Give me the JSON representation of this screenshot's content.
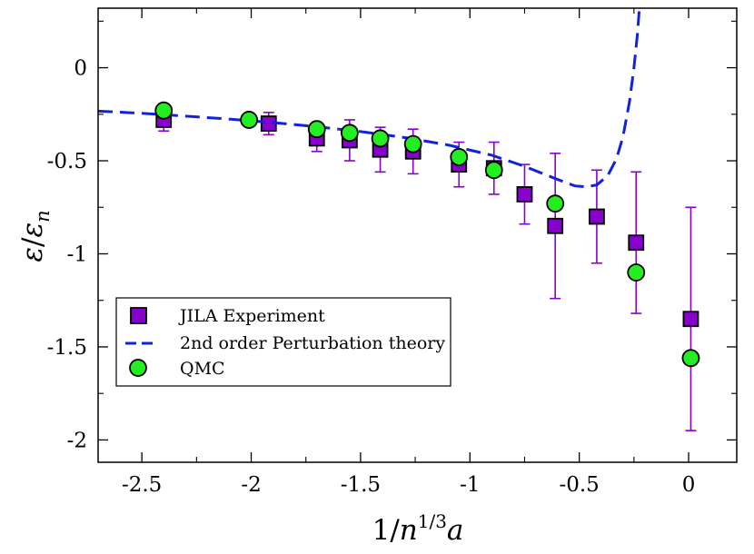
{
  "chart_data": {
    "type": "scatter",
    "title": "",
    "xlabel": "1/n^{1/3}a",
    "ylabel": "ε/ε_n",
    "xlim": [
      -2.7,
      0.22
    ],
    "ylim": [
      -2.12,
      0.32
    ],
    "x_ticks": [
      {
        "value": -2.5,
        "label": "-2.5"
      },
      {
        "value": -2,
        "label": "-2"
      },
      {
        "value": -1.5,
        "label": "-1.5"
      },
      {
        "value": -1,
        "label": "-1"
      },
      {
        "value": -0.5,
        "label": "-0.5"
      },
      {
        "value": 0,
        "label": "0"
      }
    ],
    "y_ticks": [
      {
        "value": 0,
        "label": "0"
      },
      {
        "value": -0.5,
        "label": "-0.5"
      },
      {
        "value": -1,
        "label": "-1"
      },
      {
        "value": -1.5,
        "label": "-1.5"
      },
      {
        "value": -2,
        "label": "-2"
      }
    ],
    "legend": {
      "position": "bottom-left",
      "entries": [
        "JILA Experiment",
        "2nd order Perturbation theory",
        "QMC"
      ]
    },
    "series": [
      {
        "name": "JILA Experiment",
        "marker": "square",
        "color": "#8800cc",
        "points": [
          {
            "x": -2.4,
            "y": -0.28,
            "err": 0.06
          },
          {
            "x": -1.92,
            "y": -0.3,
            "err": 0.06
          },
          {
            "x": -1.7,
            "y": -0.38,
            "err": 0.07
          },
          {
            "x": -1.55,
            "y": -0.39,
            "err": 0.11
          },
          {
            "x": -1.41,
            "y": -0.44,
            "err": 0.12
          },
          {
            "x": -1.26,
            "y": -0.45,
            "err": 0.12
          },
          {
            "x": -1.05,
            "y": -0.52,
            "err": 0.12
          },
          {
            "x": -0.89,
            "y": -0.54,
            "err": 0.14
          },
          {
            "x": -0.75,
            "y": -0.68,
            "err": 0.16
          },
          {
            "x": -0.61,
            "y": -0.85,
            "err": 0.39
          },
          {
            "x": -0.42,
            "y": -0.8,
            "err": 0.25
          },
          {
            "x": -0.24,
            "y": -0.94,
            "err": 0.38
          },
          {
            "x": 0.01,
            "y": -1.35,
            "err": 0.6
          }
        ]
      },
      {
        "name": "2nd order Perturbation theory",
        "style": "dashed",
        "color": "#1122dd",
        "x": [
          -2.7,
          -2.5,
          -2.3,
          -2.1,
          -1.9,
          -1.7,
          -1.5,
          -1.3,
          -1.1,
          -0.9,
          -0.75,
          -0.6,
          -0.52,
          -0.47,
          -0.42,
          -0.37,
          -0.33,
          -0.3,
          -0.27,
          -0.25,
          -0.235,
          -0.225
        ],
        "y": [
          -0.233,
          -0.245,
          -0.26,
          -0.276,
          -0.295,
          -0.317,
          -0.343,
          -0.375,
          -0.415,
          -0.47,
          -0.53,
          -0.6,
          -0.635,
          -0.64,
          -0.63,
          -0.58,
          -0.49,
          -0.37,
          -0.18,
          0.0,
          0.17,
          0.32
        ]
      },
      {
        "name": "QMC",
        "marker": "circle",
        "color": "#22ee22",
        "points": [
          {
            "x": -2.4,
            "y": -0.23
          },
          {
            "x": -2.01,
            "y": -0.28
          },
          {
            "x": -1.7,
            "y": -0.33
          },
          {
            "x": -1.55,
            "y": -0.35
          },
          {
            "x": -1.41,
            "y": -0.38
          },
          {
            "x": -1.26,
            "y": -0.41
          },
          {
            "x": -1.05,
            "y": -0.48
          },
          {
            "x": -0.89,
            "y": -0.55
          },
          {
            "x": -0.61,
            "y": -0.73
          },
          {
            "x": -0.24,
            "y": -1.1
          },
          {
            "x": 0.01,
            "y": -1.56
          }
        ]
      }
    ]
  }
}
